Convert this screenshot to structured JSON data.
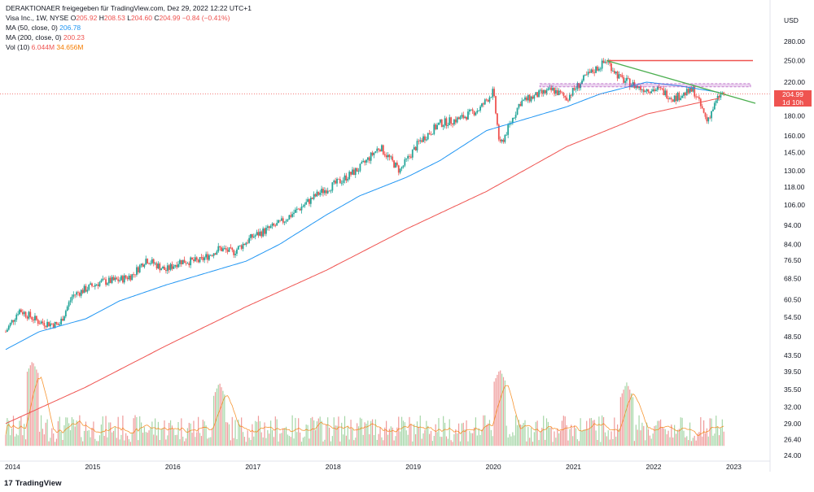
{
  "header": {
    "attribution": "DERAKTIONAER freigegeben für TradingView.com, Dez 29, 2022 12:22 UTC+1",
    "symbol_line_prefix": "Visa Inc., 1W, NYSE",
    "ohlc": {
      "o_label": "O",
      "o": "205.92",
      "h_label": "H",
      "h": "208.53",
      "l_label": "L",
      "l": "204.60",
      "c_label": "C",
      "c": "204.99",
      "change": "−0.84 (−0.41%)"
    },
    "ma50_label": "MA (50, close, 0)",
    "ma50_value": "206.78",
    "ma200_label": "MA (200, close, 0)",
    "ma200_value": "200.23",
    "vol_label": "Vol (10)",
    "vol_value": "6.044M",
    "vol_ma_value": "34.656M"
  },
  "axis": {
    "currency": "USD",
    "price_badge_price": "204.99",
    "price_badge_time": "1d 10h"
  },
  "footer": {
    "logo_text": "TradingView",
    "logo_icon": "tradingview-logo-icon"
  },
  "colors": {
    "up": "#26a69a",
    "down": "#ef5350",
    "ma50": "#2196f3",
    "ma200": "#ef5350",
    "vol_ma": "#f57c00",
    "trend_green": "#4caf50",
    "resistance_red": "#ef5350",
    "zone_purple": "#9c27b0"
  },
  "chart_data": {
    "type": "candlestick",
    "scale": "log",
    "y_ticks": [
      280,
      250,
      220,
      200,
      180,
      160,
      145,
      130,
      118,
      106,
      94,
      84,
      76.5,
      68.5,
      60.5,
      54.5,
      48.5,
      43.5,
      39.5,
      35.5,
      32,
      29,
      26.4,
      24
    ],
    "x_ticks": [
      "2014",
      "2015",
      "2016",
      "2017",
      "2018",
      "2019",
      "2020",
      "2021",
      "2022",
      "2023"
    ],
    "last_close": 204.99,
    "close_path": [
      [
        "2014-01",
        50
      ],
      [
        "2014-03",
        57
      ],
      [
        "2014-06",
        53
      ],
      [
        "2014-09",
        52
      ],
      [
        "2014-11",
        62
      ],
      [
        "2015-03",
        67
      ],
      [
        "2015-06",
        68
      ],
      [
        "2015-08",
        70
      ],
      [
        "2015-10",
        77
      ],
      [
        "2016-01",
        72
      ],
      [
        "2016-03",
        76
      ],
      [
        "2016-06",
        76
      ],
      [
        "2016-09",
        82
      ],
      [
        "2016-11",
        80
      ],
      [
        "2017-02",
        88
      ],
      [
        "2017-06",
        95
      ],
      [
        "2017-09",
        104
      ],
      [
        "2017-12",
        114
      ],
      [
        "2018-03",
        122
      ],
      [
        "2018-06",
        132
      ],
      [
        "2018-09",
        150
      ],
      [
        "2018-12",
        130
      ],
      [
        "2019-03",
        155
      ],
      [
        "2019-06",
        172
      ],
      [
        "2019-09",
        177
      ],
      [
        "2019-12",
        188
      ],
      [
        "2020-02",
        208
      ],
      [
        "2020-03",
        150
      ],
      [
        "2020-06",
        195
      ],
      [
        "2020-09",
        205
      ],
      [
        "2020-11",
        210
      ],
      [
        "2021-01",
        200
      ],
      [
        "2021-04",
        228
      ],
      [
        "2021-07",
        250
      ],
      [
        "2021-09",
        225
      ],
      [
        "2021-12",
        212
      ],
      [
        "2022-03",
        210
      ],
      [
        "2022-05",
        200
      ],
      [
        "2022-08",
        210
      ],
      [
        "2022-10",
        175
      ],
      [
        "2022-12",
        205
      ]
    ],
    "ma50_path": [
      [
        "2014-01",
        45
      ],
      [
        "2014-06",
        50
      ],
      [
        "2015-01",
        54
      ],
      [
        "2015-06",
        60
      ],
      [
        "2016-01",
        66
      ],
      [
        "2016-06",
        70
      ],
      [
        "2017-01",
        76
      ],
      [
        "2017-06",
        84
      ],
      [
        "2018-01",
        100
      ],
      [
        "2018-06",
        112
      ],
      [
        "2019-01",
        125
      ],
      [
        "2019-06",
        138
      ],
      [
        "2020-01",
        165
      ],
      [
        "2020-06",
        175
      ],
      [
        "2021-01",
        190
      ],
      [
        "2021-06",
        205
      ],
      [
        "2022-01",
        220
      ],
      [
        "2022-06",
        215
      ],
      [
        "2022-12",
        206.78
      ]
    ],
    "ma200_path": [
      [
        "2014-01",
        29
      ],
      [
        "2015-01",
        36
      ],
      [
        "2016-01",
        46
      ],
      [
        "2017-01",
        58
      ],
      [
        "2018-01",
        72
      ],
      [
        "2019-01",
        92
      ],
      [
        "2020-01",
        115
      ],
      [
        "2021-01",
        150
      ],
      [
        "2022-01",
        182
      ],
      [
        "2022-12",
        200.23
      ]
    ],
    "drawings": {
      "resistance_level": 250,
      "zone_top": 218,
      "zone_bottom": 214,
      "trendline": [
        [
          "2021-07",
          250
        ],
        [
          "2023-03",
          194
        ]
      ]
    },
    "volume_peaks": [
      [
        "2014-05",
        42
      ],
      [
        "2016-09",
        37
      ],
      [
        "2020-03",
        40
      ],
      [
        "2021-10",
        37
      ]
    ]
  }
}
